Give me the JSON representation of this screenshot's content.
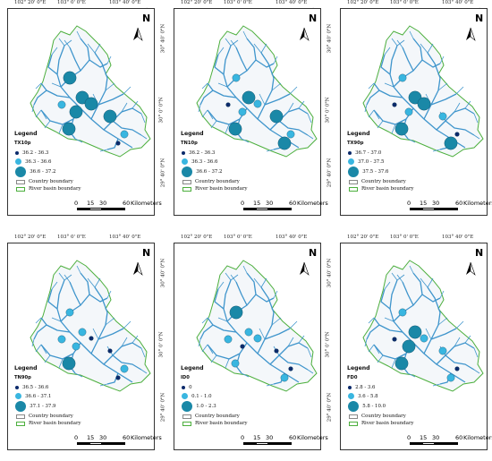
{
  "coords": {
    "top": [
      "102° 20' 0\"E",
      "103° 0' 0\"E",
      "103° 40' 0\"E"
    ],
    "left": [
      "30° 40' 0\"N",
      "30° 0' 0\"N",
      "29° 40' 0\"N"
    ],
    "right": [
      "31° 0' 0\"N",
      "30° 20' 0\"N",
      "29° 40' 0\"N"
    ]
  },
  "north_label": "N",
  "legend_title": "Legend",
  "boundary_labels": [
    "Country boundary",
    "River basin boundary"
  ],
  "scale": {
    "ticks": [
      "0",
      "15",
      "30",
      "60"
    ],
    "unit": "Kilometers"
  },
  "colors": {
    "dark": "#0b2a6b",
    "light": "#39b6e0",
    "medium": "#1a88a7",
    "river": "#3f95cc",
    "basin": "#4caf3d"
  },
  "panels": [
    {
      "variable": "TX10p",
      "classes": [
        "36.2 - 36.3",
        "36.3 - 36.6",
        "36.6 - 37.2"
      ],
      "stations": [
        {
          "id": "s1",
          "cls": 2
        },
        {
          "id": "s2",
          "cls": 2
        },
        {
          "id": "s3",
          "cls": 1
        },
        {
          "id": "s4",
          "cls": 2
        },
        {
          "id": "s5",
          "cls": 2
        },
        {
          "id": "s6",
          "cls": 2
        },
        {
          "id": "s7",
          "cls": 2
        },
        {
          "id": "s8",
          "cls": 1
        },
        {
          "id": "s9",
          "cls": 0
        }
      ]
    },
    {
      "variable": "TN10p",
      "classes": [
        "36.2 - 36.3",
        "36.3 - 36.6",
        "36.6 - 37.2"
      ],
      "stations": [
        {
          "id": "s1",
          "cls": 1
        },
        {
          "id": "s2",
          "cls": 2
        },
        {
          "id": "s3",
          "cls": 0
        },
        {
          "id": "s4",
          "cls": 1
        },
        {
          "id": "s5",
          "cls": 1
        },
        {
          "id": "s6",
          "cls": 2
        },
        {
          "id": "s7",
          "cls": 2
        },
        {
          "id": "s8",
          "cls": 1
        },
        {
          "id": "s9",
          "cls": 2
        }
      ]
    },
    {
      "variable": "TX90p",
      "classes": [
        "36.7 - 37.0",
        "37.0 - 37.5",
        "37.5 - 37.6"
      ],
      "stations": [
        {
          "id": "s1",
          "cls": 1
        },
        {
          "id": "s2",
          "cls": 2
        },
        {
          "id": "s3",
          "cls": 0
        },
        {
          "id": "s4",
          "cls": 1
        },
        {
          "id": "s5",
          "cls": 2
        },
        {
          "id": "s6",
          "cls": 2
        },
        {
          "id": "s7",
          "cls": 1
        },
        {
          "id": "s8",
          "cls": 0
        },
        {
          "id": "s9",
          "cls": 2
        }
      ]
    },
    {
      "variable": "TN90p",
      "classes": [
        "36.5 - 36.6",
        "36.6 - 37.1",
        "37.1 - 37.9"
      ],
      "stations": [
        {
          "id": "s1",
          "cls": 1
        },
        {
          "id": "s2",
          "cls": 1
        },
        {
          "id": "s3",
          "cls": 1
        },
        {
          "id": "s4",
          "cls": 1
        },
        {
          "id": "s5",
          "cls": 0
        },
        {
          "id": "s6",
          "cls": 2
        },
        {
          "id": "s7",
          "cls": 0
        },
        {
          "id": "s8",
          "cls": 1
        },
        {
          "id": "s9",
          "cls": 0
        }
      ]
    },
    {
      "variable": "ID0",
      "classes": [
        "0",
        "0.1 - 1.0",
        "1.0 - 2.3"
      ],
      "stations": [
        {
          "id": "s1",
          "cls": 2
        },
        {
          "id": "s2",
          "cls": 1
        },
        {
          "id": "s3",
          "cls": 1
        },
        {
          "id": "s4",
          "cls": 0
        },
        {
          "id": "s5",
          "cls": 1
        },
        {
          "id": "s6",
          "cls": 1
        },
        {
          "id": "s7",
          "cls": 0
        },
        {
          "id": "s8",
          "cls": 0
        },
        {
          "id": "s9",
          "cls": 1
        }
      ]
    },
    {
      "variable": "FD0",
      "classes": [
        "2.8 - 3.6",
        "3.6 - 5.8",
        "5.8 - 10.0"
      ],
      "stations": [
        {
          "id": "s1",
          "cls": 1
        },
        {
          "id": "s2",
          "cls": 2
        },
        {
          "id": "s3",
          "cls": 0
        },
        {
          "id": "s4",
          "cls": 2
        },
        {
          "id": "s5",
          "cls": 1
        },
        {
          "id": "s6",
          "cls": 2
        },
        {
          "id": "s7",
          "cls": 1
        },
        {
          "id": "s8",
          "cls": 0
        },
        {
          "id": "s9",
          "cls": 1
        }
      ]
    }
  ]
}
